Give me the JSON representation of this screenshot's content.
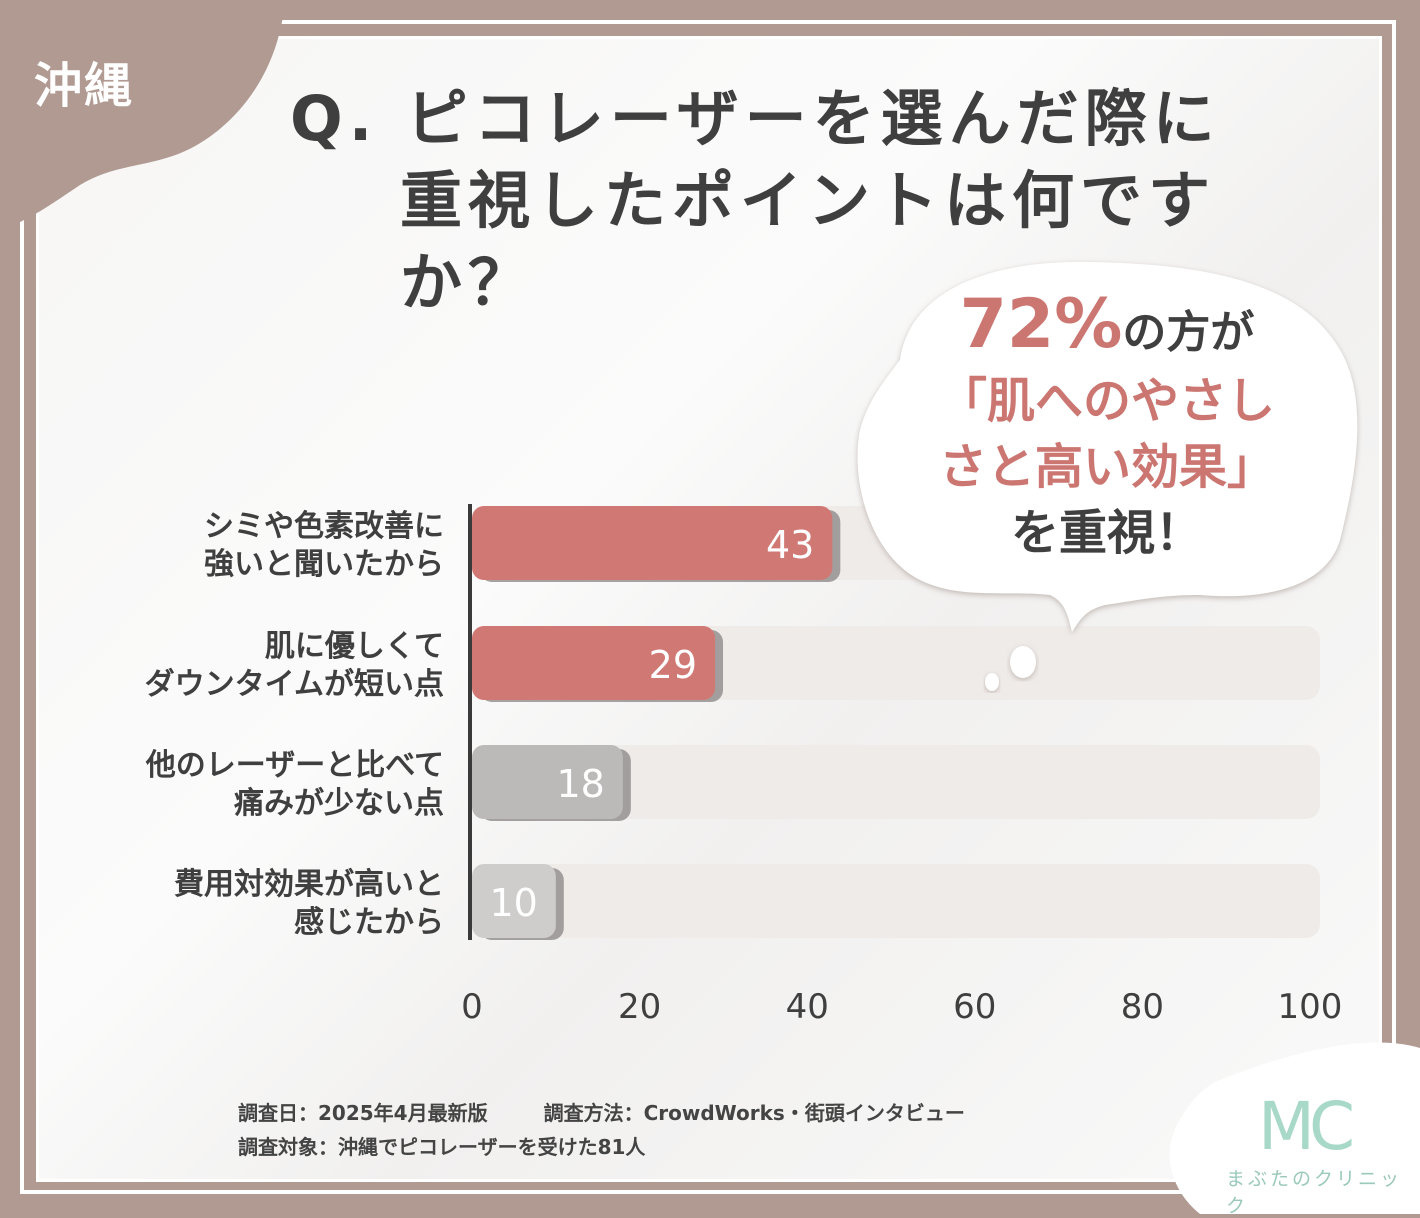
{
  "region": "沖縄",
  "title": {
    "line1": "Q. ピコレーザーを選んだ際に",
    "line2": "重視したポイントは何ですか？"
  },
  "callout": {
    "percent": "72%",
    "line1_rest": "の方が",
    "line2": "「肌へのやさし",
    "line3": "さと高い効果」",
    "line4": "を重視！"
  },
  "chart_data": {
    "type": "bar",
    "orientation": "horizontal",
    "categories": [
      "シミや色素改善に\n強いと聞いたから",
      "肌に優しくて\nダウンタイムが短い点",
      "他のレーザーと比べて\n痛みが少ない点",
      "費用対効果が高いと\n感じたから"
    ],
    "values": [
      43,
      29,
      18,
      10
    ],
    "xlim": [
      0,
      100
    ],
    "xticks": [
      "0",
      "20",
      "40",
      "60",
      "80",
      "100"
    ],
    "colors": [
      "#d07874",
      "#d07874",
      "#bcbab9",
      "#cfcdcc"
    ],
    "track_color": "#efebe9"
  },
  "footer": {
    "date": "調査日：2025年4月最新版",
    "method": "調査方法：CrowdWorks・街頭インタビュー",
    "target": "調査対象：沖縄でピコレーザーを受けた81人"
  },
  "logo": {
    "mark": "MC",
    "name": "まぶたのクリニック"
  },
  "colors": {
    "frame": "#b09a92",
    "accent": "#cc7672",
    "text": "#3f3f3f",
    "logo": "#a7d8c8"
  }
}
